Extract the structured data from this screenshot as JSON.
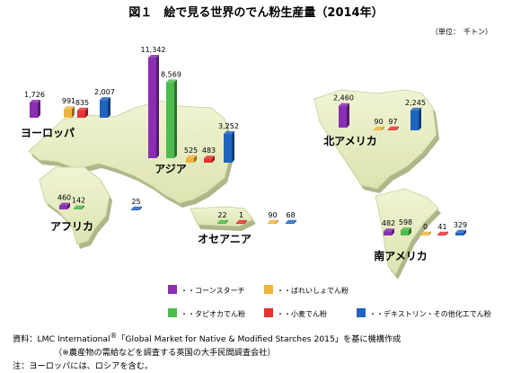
{
  "title": "図１　絵で見る世界のでん粉生産量（2014年）",
  "unit": "（単位：　千トン）",
  "colors": {
    "corn": "#8a2fb3",
    "potato": "#f0b43c",
    "tapioca": "#4dbb4d",
    "wheat": "#e53232",
    "other": "#1f64c0"
  },
  "chart_data": {
    "type": "bar",
    "title": "図１　絵で見る世界のでん粉生産量（2014年）",
    "unit": "（単位：　千トン）",
    "series_keys": [
      "corn",
      "potato",
      "tapioca",
      "wheat",
      "other"
    ],
    "legend": [
      {
        "key": "corn",
        "label": "・・コーンスターチ"
      },
      {
        "key": "potato",
        "label": "・・ばれいしょでん粉"
      },
      {
        "key": "tapioca",
        "label": "・・タピオカでん粉"
      },
      {
        "key": "wheat",
        "label": "・・小麦でん粉"
      },
      {
        "key": "other",
        "label": "・・デキストリン・その他化工でん粉"
      }
    ],
    "regions": [
      {
        "name": "ヨーロッパ",
        "values": {
          "corn": "1,726",
          "potato": "991",
          "wheat": "835",
          "other": "2,007"
        }
      },
      {
        "name": "アジア",
        "values": {
          "corn": "11,342",
          "tapioca": "8,569",
          "potato": "525",
          "wheat": "483",
          "other": "3,252"
        }
      },
      {
        "name": "北アメリカ",
        "values": {
          "corn": "2,460",
          "potato": "90",
          "wheat": "97",
          "other": "2,245"
        }
      },
      {
        "name": "アフリカ",
        "values": {
          "corn": "460",
          "tapioca": "142",
          "other": "25"
        }
      },
      {
        "name": "オセアニア",
        "values": {
          "tapioca": "22",
          "wheat": "1",
          "potato": "90",
          "other": "68"
        }
      },
      {
        "name": "南アメリカ",
        "values": {
          "corn": "482",
          "tapioca": "598",
          "potato": "0",
          "wheat": "41",
          "other": "329"
        }
      }
    ]
  },
  "notes": {
    "source_prefix": "資料：LMC International",
    "source_mark": "®",
    "source_rest": "「Global Market for Native & Modified Starches 2015」を基に機構作成",
    "source_sub": "（※農産物の需給などを調査する英国の大手民間調査会社）",
    "note": "注：ヨーロッパには、ロシアを含む。"
  }
}
